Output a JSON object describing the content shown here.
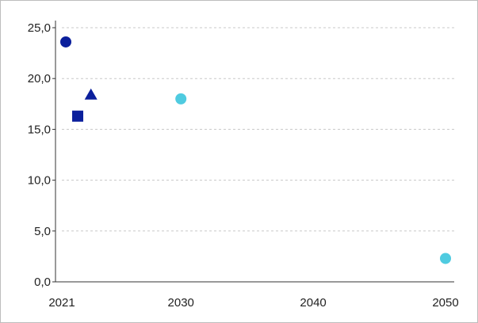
{
  "chart_data": {
    "type": "scatter",
    "title": "",
    "xlabel": "",
    "ylabel": "",
    "xlim": [
      2021,
      2050
    ],
    "ylim": [
      0,
      25
    ],
    "x_ticks": [
      2021,
      2030,
      2040,
      2050
    ],
    "x_tick_labels": [
      "2021",
      "2030",
      "2040",
      "2050"
    ],
    "y_ticks": [
      0,
      5,
      10,
      15,
      20,
      25
    ],
    "y_tick_labels": [
      "0,0",
      "5,0",
      "10,0",
      "15,0",
      "20,0",
      "25,0"
    ],
    "grid": "horizontal dashed",
    "legend": "none",
    "series": [
      {
        "marker": "circle",
        "color": "#0b1f9c",
        "points": [
          {
            "x": 2021.3,
            "y": 23.6
          }
        ]
      },
      {
        "marker": "square",
        "color": "#0b1f9c",
        "points": [
          {
            "x": 2022.2,
            "y": 16.3
          }
        ]
      },
      {
        "marker": "triangle",
        "color": "#0b1f9c",
        "points": [
          {
            "x": 2023.2,
            "y": 18.4
          }
        ]
      },
      {
        "marker": "circle",
        "color": "#4fcbe0",
        "points": [
          {
            "x": 2030.0,
            "y": 18.0
          },
          {
            "x": 2050.0,
            "y": 2.3
          }
        ]
      }
    ]
  }
}
